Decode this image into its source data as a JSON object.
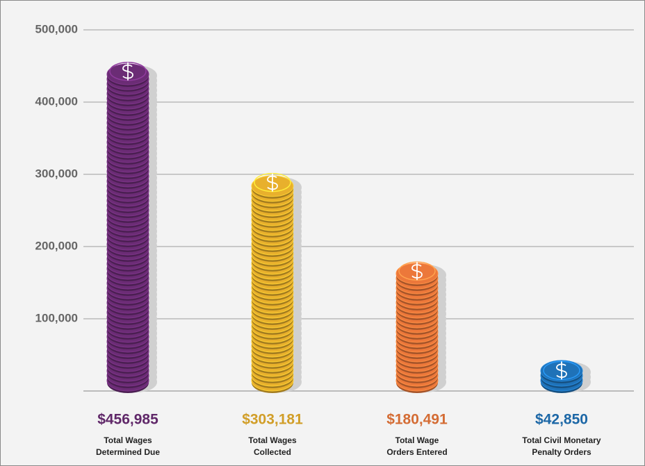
{
  "chart_data": {
    "type": "bar",
    "categories": [
      "Total Wages Determined Due",
      "Total Wages Collected",
      "Total Wage Orders Entered",
      "Total Civil Monetary Penalty Orders"
    ],
    "values": [
      456985,
      303181,
      180491,
      42850
    ],
    "value_labels": [
      "$456,985",
      "$303,181",
      "$180,491",
      "$42,850"
    ],
    "colors": [
      "#6b2c75",
      "#e8b02c",
      "#ec783a",
      "#1f72b8"
    ],
    "ylim": [
      0,
      500000
    ],
    "yticks": [
      {
        "value": 100000,
        "label": "100,000"
      },
      {
        "value": 200000,
        "label": "200,000"
      },
      {
        "value": 300000,
        "label": "300,000"
      },
      {
        "value": 400000,
        "label": "400,000"
      },
      {
        "value": 500000,
        "label": "500,000"
      }
    ],
    "grid": true
  }
}
